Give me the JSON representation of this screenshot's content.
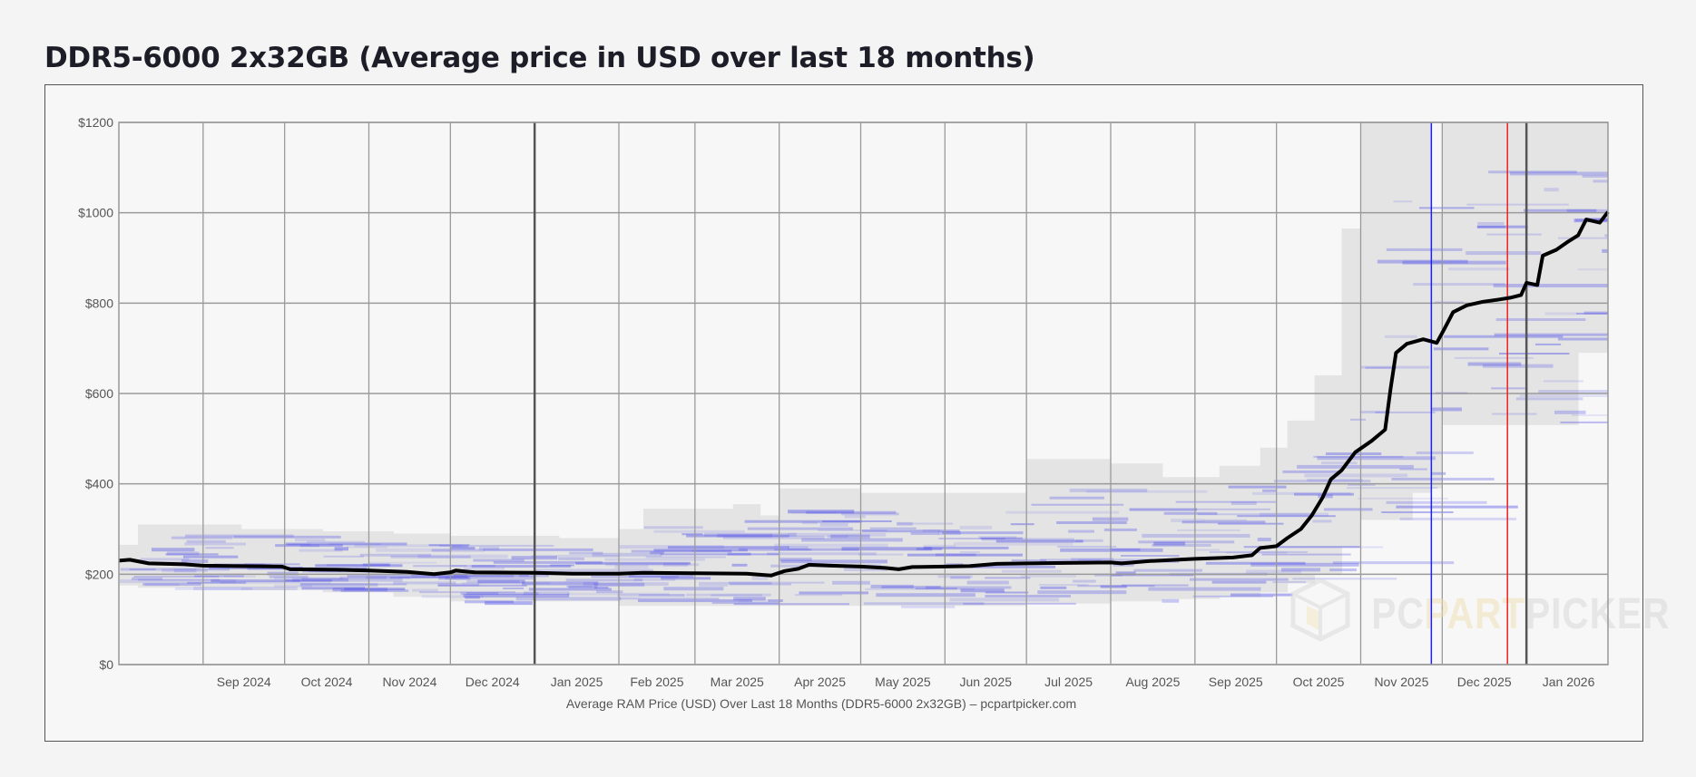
{
  "page_title": "DDR5-6000 2x32GB (Average price in USD over last 18 months)",
  "chart_data": {
    "type": "line",
    "title": "DDR5-6000 2x32GB (Average price in USD over last 18 months)",
    "caption": "Average RAM Price (USD) Over Last 18 Months (DDR5-6000 2x32GB) – pcpartpicker.com",
    "xlabel": "",
    "ylabel": "",
    "xlim": [
      "2024-08-01",
      "2026-01-31"
    ],
    "ylim": [
      0,
      1200
    ],
    "grid": true,
    "y_ticks": [
      {
        "value": 0,
        "label": "$0"
      },
      {
        "value": 200,
        "label": "$200"
      },
      {
        "value": 400,
        "label": "$400"
      },
      {
        "value": 600,
        "label": "$600"
      },
      {
        "value": 800,
        "label": "$800"
      },
      {
        "value": 1000,
        "label": "$1000"
      },
      {
        "value": 1200,
        "label": "$1200"
      }
    ],
    "x_ticks": [
      {
        "date": "2024-09-01",
        "label": "Sep 2024"
      },
      {
        "date": "2024-10-01",
        "label": "Oct 2024"
      },
      {
        "date": "2024-11-01",
        "label": "Nov 2024"
      },
      {
        "date": "2024-12-01",
        "label": "Dec 2024"
      },
      {
        "date": "2025-01-01",
        "label": "Jan 2025",
        "year_boundary": true
      },
      {
        "date": "2025-02-01",
        "label": "Feb 2025"
      },
      {
        "date": "2025-03-01",
        "label": "Mar 2025"
      },
      {
        "date": "2025-04-01",
        "label": "Apr 2025"
      },
      {
        "date": "2025-05-01",
        "label": "May 2025"
      },
      {
        "date": "2025-06-01",
        "label": "Jun 2025"
      },
      {
        "date": "2025-07-01",
        "label": "Jul 2025"
      },
      {
        "date": "2025-08-01",
        "label": "Aug 2025"
      },
      {
        "date": "2025-09-01",
        "label": "Sep 2025"
      },
      {
        "date": "2025-10-01",
        "label": "Oct 2025"
      },
      {
        "date": "2025-11-01",
        "label": "Nov 2025"
      },
      {
        "date": "2025-12-01",
        "label": "Dec 2025"
      },
      {
        "date": "2026-01-01",
        "label": "Jan 2026",
        "year_boundary": true
      }
    ],
    "markers": [
      {
        "date": "2025-11-27",
        "color": "#2020ee"
      },
      {
        "date": "2025-12-25",
        "color": "#ee2020"
      }
    ],
    "series": [
      {
        "name": "Average price",
        "color": "#000000",
        "points": [
          [
            "2024-08-01",
            230
          ],
          [
            "2024-08-05",
            232
          ],
          [
            "2024-08-12",
            224
          ],
          [
            "2024-08-25",
            222
          ],
          [
            "2024-09-01",
            219
          ],
          [
            "2024-09-15",
            218
          ],
          [
            "2024-09-30",
            217
          ],
          [
            "2024-10-03",
            211
          ],
          [
            "2024-10-20",
            210
          ],
          [
            "2024-11-01",
            208
          ],
          [
            "2024-11-15",
            205
          ],
          [
            "2024-11-25",
            200
          ],
          [
            "2024-12-01",
            204
          ],
          [
            "2024-12-03",
            208
          ],
          [
            "2024-12-10",
            204
          ],
          [
            "2025-01-01",
            203
          ],
          [
            "2025-01-15",
            201
          ],
          [
            "2025-02-01",
            201
          ],
          [
            "2025-02-10",
            203
          ],
          [
            "2025-03-01",
            202
          ],
          [
            "2025-03-20",
            201
          ],
          [
            "2025-03-29",
            197
          ],
          [
            "2025-04-03",
            207
          ],
          [
            "2025-04-08",
            212
          ],
          [
            "2025-04-12",
            221
          ],
          [
            "2025-04-20",
            219
          ],
          [
            "2025-05-01",
            217
          ],
          [
            "2025-05-10",
            214
          ],
          [
            "2025-05-15",
            211
          ],
          [
            "2025-05-20",
            216
          ],
          [
            "2025-06-01",
            217
          ],
          [
            "2025-06-10",
            218
          ],
          [
            "2025-06-20",
            223
          ],
          [
            "2025-07-01",
            224
          ],
          [
            "2025-07-15",
            225
          ],
          [
            "2025-08-01",
            226
          ],
          [
            "2025-08-05",
            224
          ],
          [
            "2025-08-15",
            229
          ],
          [
            "2025-09-01",
            234
          ],
          [
            "2025-09-15",
            237
          ],
          [
            "2025-09-22",
            242
          ],
          [
            "2025-09-25",
            258
          ],
          [
            "2025-10-01",
            262
          ],
          [
            "2025-10-05",
            280
          ],
          [
            "2025-10-10",
            300
          ],
          [
            "2025-10-14",
            330
          ],
          [
            "2025-10-18",
            370
          ],
          [
            "2025-10-21",
            410
          ],
          [
            "2025-10-25",
            430
          ],
          [
            "2025-10-30",
            470
          ],
          [
            "2025-11-05",
            495
          ],
          [
            "2025-11-10",
            520
          ],
          [
            "2025-11-12",
            610
          ],
          [
            "2025-11-14",
            690
          ],
          [
            "2025-11-18",
            710
          ],
          [
            "2025-11-24",
            720
          ],
          [
            "2025-11-29",
            712
          ],
          [
            "2025-12-02",
            745
          ],
          [
            "2025-12-05",
            780
          ],
          [
            "2025-12-10",
            795
          ],
          [
            "2025-12-16",
            803
          ],
          [
            "2025-12-22",
            808
          ],
          [
            "2025-12-26",
            812
          ],
          [
            "2025-12-30",
            818
          ],
          [
            "2026-01-01",
            845
          ],
          [
            "2026-01-05",
            840
          ],
          [
            "2026-01-07",
            905
          ],
          [
            "2026-01-12",
            918
          ],
          [
            "2026-01-16",
            935
          ],
          [
            "2026-01-20",
            950
          ],
          [
            "2026-01-23",
            985
          ],
          [
            "2026-01-28",
            978
          ],
          [
            "2026-01-31",
            1002
          ]
        ]
      },
      {
        "name": "Price range",
        "color": "#e4e4e4",
        "bands": [
          [
            "2024-08-01",
            175,
            265
          ],
          [
            "2024-08-08",
            170,
            310
          ],
          [
            "2024-09-15",
            165,
            300
          ],
          [
            "2024-10-15",
            160,
            295
          ],
          [
            "2024-11-10",
            150,
            290
          ],
          [
            "2024-12-01",
            140,
            285
          ],
          [
            "2025-01-10",
            140,
            280
          ],
          [
            "2025-02-01",
            130,
            300
          ],
          [
            "2025-02-10",
            130,
            345
          ],
          [
            "2025-03-15",
            130,
            355
          ],
          [
            "2025-03-25",
            130,
            330
          ],
          [
            "2025-04-01",
            130,
            390
          ],
          [
            "2025-05-01",
            130,
            380
          ],
          [
            "2025-06-01",
            130,
            380
          ],
          [
            "2025-07-01",
            135,
            455
          ],
          [
            "2025-08-01",
            140,
            445
          ],
          [
            "2025-08-20",
            145,
            415
          ],
          [
            "2025-09-10",
            150,
            440
          ],
          [
            "2025-09-25",
            160,
            480
          ],
          [
            "2025-10-05",
            180,
            540
          ],
          [
            "2025-10-15",
            200,
            640
          ],
          [
            "2025-10-25",
            260,
            965
          ],
          [
            "2025-11-01",
            320,
            1200
          ],
          [
            "2025-11-20",
            380,
            1200
          ],
          [
            "2025-11-27",
            390,
            1000
          ],
          [
            "2025-12-01",
            530,
            1200
          ],
          [
            "2025-12-25",
            530,
            1200
          ],
          [
            "2026-01-20",
            690,
            1200
          ],
          [
            "2026-01-31",
            690,
            1200
          ]
        ]
      }
    ]
  },
  "watermark": {
    "text_a": "PC",
    "text_b": "PART",
    "text_c": "PICKER"
  }
}
